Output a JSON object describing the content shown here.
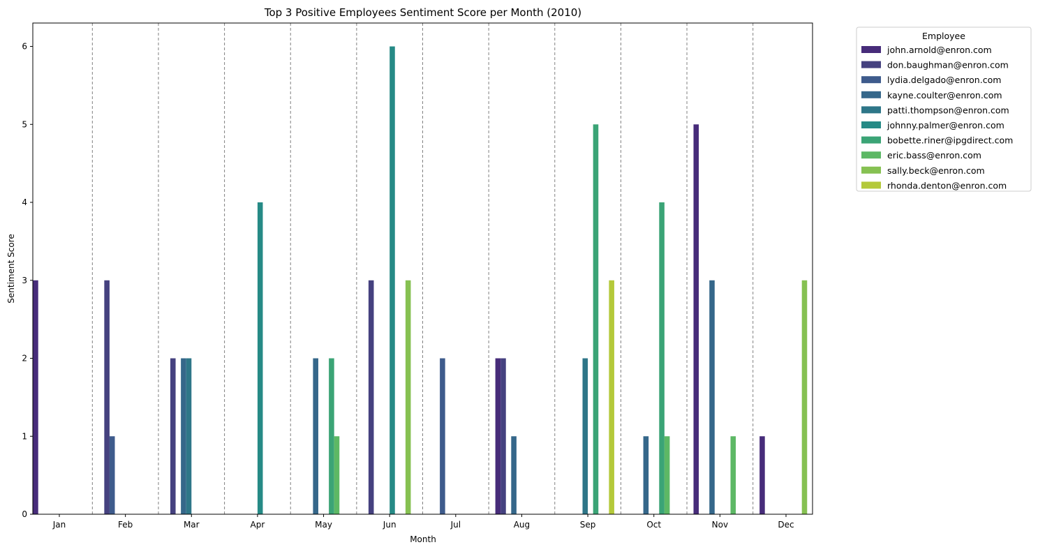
{
  "chart_data": {
    "type": "bar",
    "title": "Top 3 Positive Employees Sentiment Score per Month (2010)",
    "xlabel": "Month",
    "ylabel": "Sentiment Score",
    "ylim": [
      0,
      6.3
    ],
    "yticks": [
      0,
      1,
      2,
      3,
      4,
      5,
      6
    ],
    "grid": "vertical dashed separators between months",
    "legend": {
      "title": "Employee",
      "placement": "outside-right"
    },
    "categories": [
      "Jan",
      "Feb",
      "Mar",
      "Apr",
      "May",
      "Jun",
      "Jul",
      "Aug",
      "Sep",
      "Oct",
      "Nov",
      "Dec"
    ],
    "series": [
      {
        "name": "john.arnold@enron.com",
        "color": "#472c7a",
        "values": [
          3,
          0,
          0,
          0,
          0,
          0,
          0,
          2,
          0,
          0,
          5,
          1
        ]
      },
      {
        "name": "don.baughman@enron.com",
        "color": "#45417f",
        "values": [
          0,
          3,
          2,
          0,
          0,
          3,
          0,
          2,
          0,
          0,
          0,
          0
        ]
      },
      {
        "name": "lydia.delgado@enron.com",
        "color": "#3e5b8c",
        "values": [
          0,
          1,
          0,
          0,
          0,
          0,
          2,
          0,
          0,
          0,
          0,
          0
        ]
      },
      {
        "name": "kayne.coulter@enron.com",
        "color": "#35678a",
        "values": [
          0,
          0,
          2,
          0,
          2,
          0,
          0,
          1,
          0,
          1,
          3,
          0
        ]
      },
      {
        "name": "patti.thompson@enron.com",
        "color": "#2e7688",
        "values": [
          0,
          0,
          2,
          0,
          0,
          0,
          0,
          0,
          2,
          0,
          0,
          0
        ]
      },
      {
        "name": "johnny.palmer@enron.com",
        "color": "#268a86",
        "values": [
          0,
          0,
          0,
          4,
          0,
          6,
          0,
          0,
          0,
          0,
          0,
          0
        ]
      },
      {
        "name": "bobette.riner@ipgdirect.com",
        "color": "#3ba476",
        "values": [
          0,
          0,
          0,
          0,
          2,
          0,
          0,
          0,
          5,
          4,
          0,
          0
        ]
      },
      {
        "name": "eric.bass@enron.com",
        "color": "#5db865",
        "values": [
          0,
          0,
          0,
          0,
          1,
          0,
          0,
          0,
          0,
          1,
          1,
          0
        ]
      },
      {
        "name": "sally.beck@enron.com",
        "color": "#86c152",
        "values": [
          0,
          0,
          0,
          0,
          0,
          3,
          0,
          0,
          0,
          0,
          0,
          3
        ]
      },
      {
        "name": "rhonda.denton@enron.com",
        "color": "#b4c93a",
        "values": [
          0,
          0,
          0,
          0,
          0,
          0,
          0,
          0,
          3,
          0,
          0,
          0
        ]
      }
    ]
  }
}
